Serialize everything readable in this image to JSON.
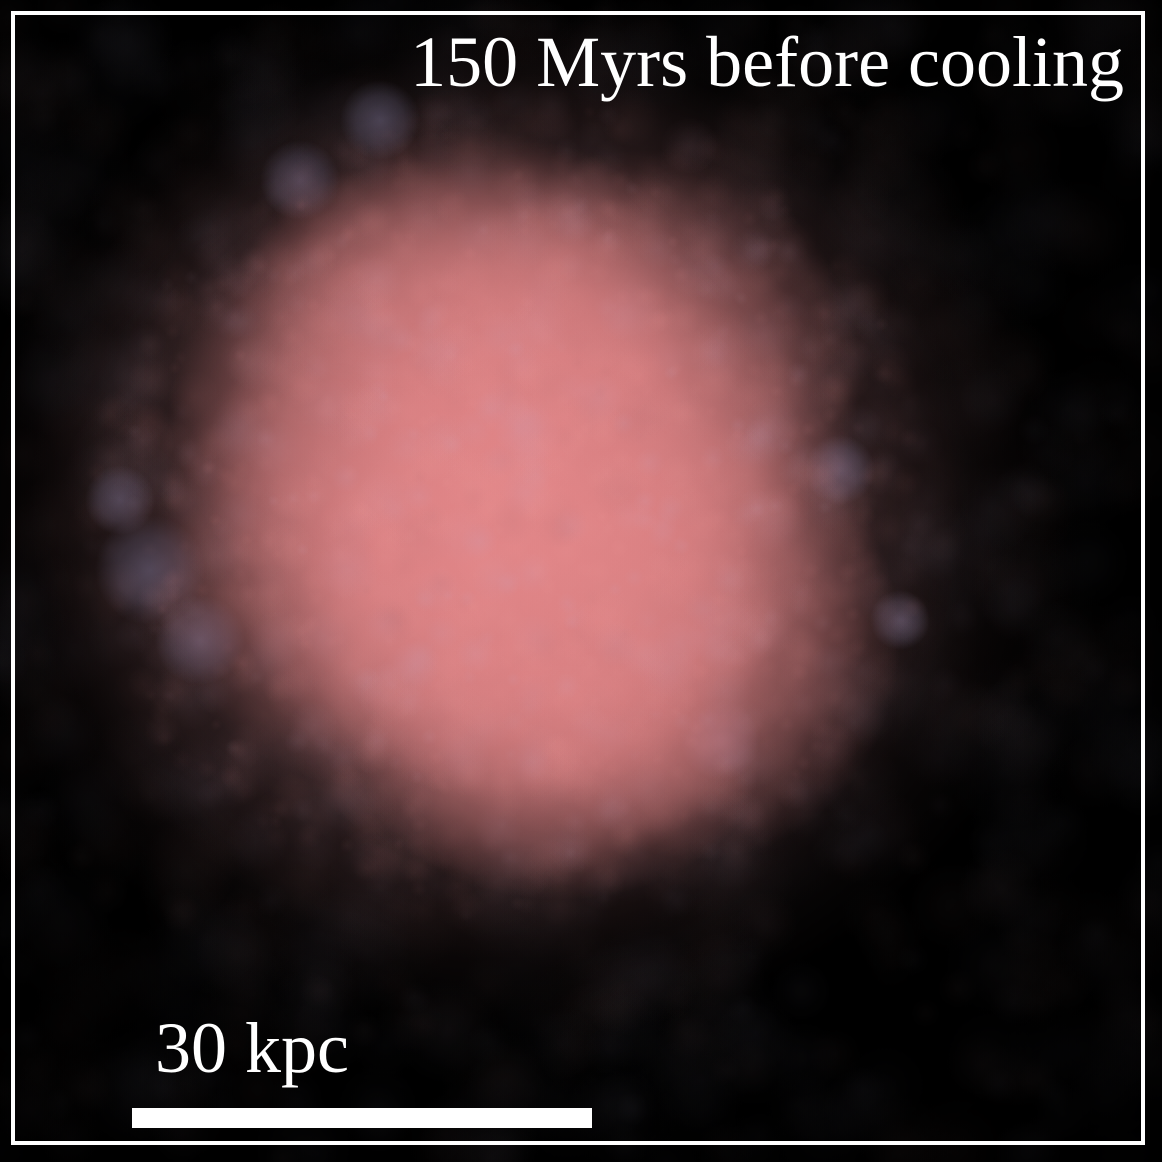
{
  "image": {
    "caption": "150 Myrs before cooling",
    "scale_bar": {
      "label": "30 kpc"
    },
    "colors": {
      "background": "#000000",
      "cloud_core": "#e2888a",
      "cloud_halo": "#9a8fb8",
      "text": "#ffffff",
      "frame": "#ffffff"
    }
  }
}
